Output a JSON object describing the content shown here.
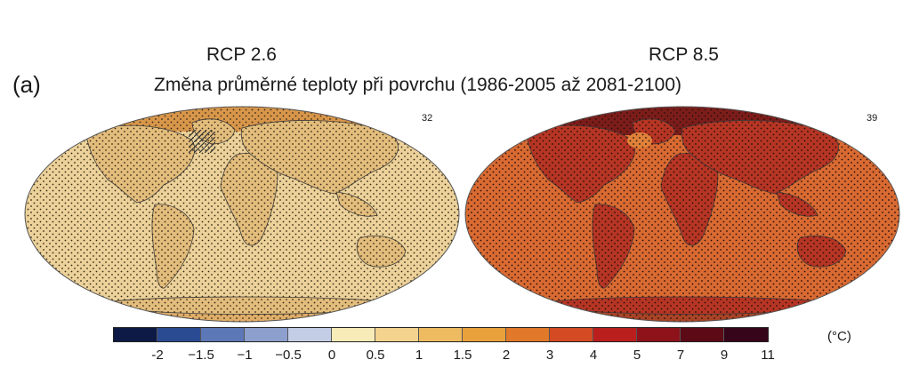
{
  "panel_label": "(a)",
  "title": "Změna průměrné teploty při povrchu (1986-2005 až 2081-2100)",
  "maps": [
    {
      "scenario": "RCP 2.6",
      "model_count": "32",
      "base_color": "#e9c98c",
      "ocean_color": "#ecd29a",
      "land_color": "#e3bd7c",
      "arctic_color": "#d8964a"
    },
    {
      "scenario": "RCP 8.5",
      "model_count": "39",
      "base_color": "#d7622c",
      "ocean_color": "#d86a32",
      "land_color": "#b63524",
      "arctic_color": "#7c1d1a"
    }
  ],
  "colorbar": {
    "unit": "(°C)",
    "ticks": [
      "-2",
      "−1.5",
      "−1",
      "−0.5",
      "0",
      "0.5",
      "1",
      "1.5",
      "2",
      "3",
      "4",
      "5",
      "7",
      "9",
      "11"
    ],
    "colors": [
      "#0c1a45",
      "#2a4a92",
      "#5c78b6",
      "#8c9fcd",
      "#c4cde6",
      "#f7ebb7",
      "#f3d38d",
      "#eebb60",
      "#e9a13c",
      "#e0792a",
      "#d44a22",
      "#bb1f1d",
      "#8d121a",
      "#5c0a16",
      "#37051a"
    ]
  },
  "icons": {
    "stippling": "stipple-pattern",
    "hatching": "hatch-pattern"
  }
}
